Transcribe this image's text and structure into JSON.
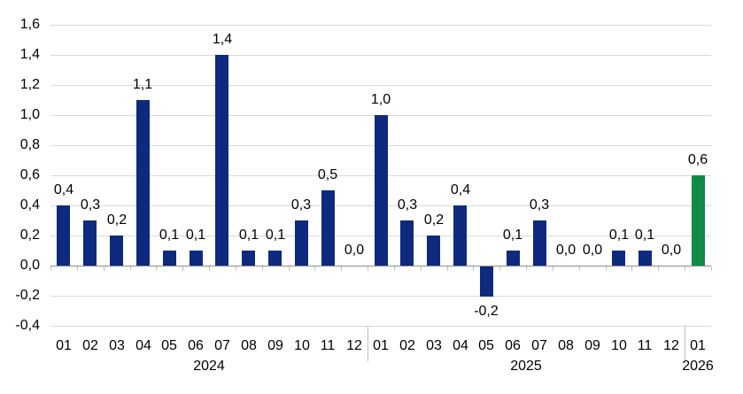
{
  "chart_data": {
    "type": "bar",
    "title": "",
    "xlabel": "",
    "ylabel": "",
    "categories": [
      "01",
      "02",
      "03",
      "04",
      "05",
      "06",
      "07",
      "08",
      "09",
      "10",
      "11",
      "12",
      "01",
      "02",
      "03",
      "04",
      "05",
      "06",
      "07",
      "08",
      "09",
      "10",
      "11",
      "12",
      "01"
    ],
    "category_groups": [
      {
        "label": "2024",
        "span": 12
      },
      {
        "label": "2025",
        "span": 12
      },
      {
        "label": "2026",
        "span": 1
      }
    ],
    "values": [
      0.4,
      0.3,
      0.2,
      1.1,
      0.1,
      0.1,
      1.4,
      0.1,
      0.1,
      0.3,
      0.5,
      0.0,
      1.0,
      0.3,
      0.2,
      0.4,
      -0.2,
      0.1,
      0.3,
      0.0,
      0.0,
      0.1,
      0.1,
      0.0,
      0.6
    ],
    "bar_labels": [
      "0,4",
      "0,3",
      "0,2",
      "1,1",
      "0,1",
      "0,1",
      "1,4",
      "0,1",
      "0,1",
      "0,3",
      "0,5",
      "0,0",
      "1,0",
      "0,3",
      "0,2",
      "0,4",
      "-0,2",
      "0,1",
      "0,3",
      "0,0",
      "0,0",
      "0,1",
      "0,1",
      "0,0",
      "0,6"
    ],
    "ylim": [
      -0.4,
      1.6
    ],
    "y_tick_step": 0.2,
    "y_ticks": [
      1.6,
      1.4,
      1.2,
      1.0,
      0.8,
      0.6,
      0.4,
      0.2,
      0.0,
      -0.2,
      -0.4
    ],
    "y_tick_labels": [
      "1,6",
      "1,4",
      "1,2",
      "1,0",
      "0,8",
      "0,6",
      "0,4",
      "0,2",
      "0,0",
      "-0,2",
      "-0,4"
    ],
    "decimal_separator": ",",
    "grid": true,
    "legend": false,
    "highlight_index": 24,
    "colors": {
      "bar": "#0d2a7e",
      "highlight_bar": "#0e8b45",
      "gridline": "#d9d9d9",
      "axis": "#8f8f8f",
      "tick": "#bfbfbf",
      "separator": "#bfbfbf",
      "text": "#000000"
    }
  }
}
